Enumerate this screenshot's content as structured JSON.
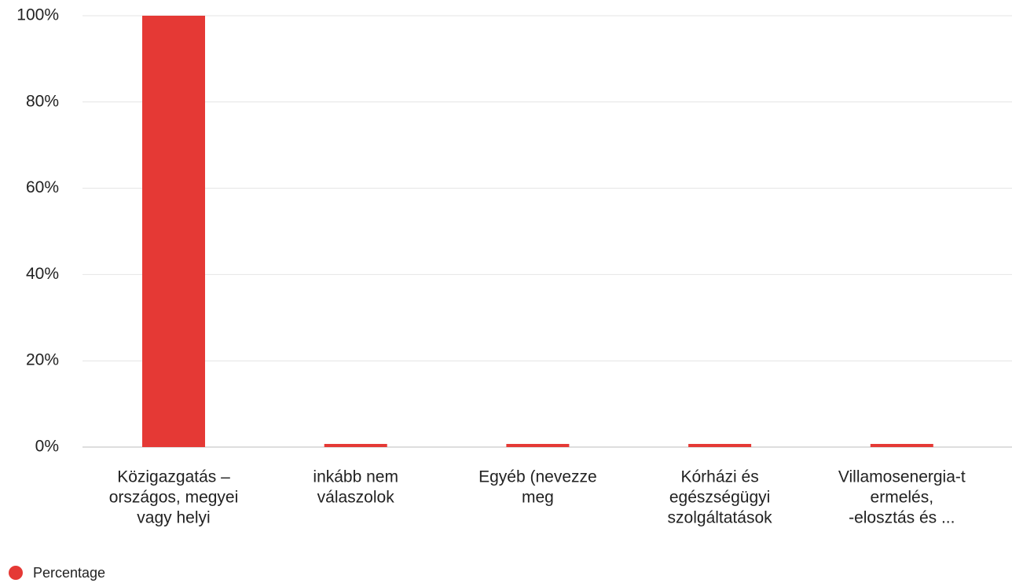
{
  "chart_data": {
    "type": "bar",
    "categories": [
      [
        "Közigazgatás –",
        "országos, megyei",
        "vagy helyi"
      ],
      [
        "inkább nem",
        "válaszolok"
      ],
      [
        "Egyéb (nevezze",
        "meg"
      ],
      [
        "Kórházi és",
        "egészségügyi",
        "szolgáltatások"
      ],
      [
        "Villamosenergia-t",
        "ermelés,",
        "-elosztás és ..."
      ]
    ],
    "series": [
      {
        "name": "Percentage",
        "color": "#e53935",
        "values": [
          100,
          0,
          0,
          0,
          0
        ]
      }
    ],
    "ylim": [
      0,
      100
    ],
    "yticks": [
      {
        "value": 0,
        "label": "0%"
      },
      {
        "value": 20,
        "label": "20%"
      },
      {
        "value": 40,
        "label": "40%"
      },
      {
        "value": 60,
        "label": "60%"
      },
      {
        "value": 80,
        "label": "80%"
      },
      {
        "value": 100,
        "label": "100%"
      }
    ],
    "grid": true,
    "legend": "bottom-left"
  }
}
